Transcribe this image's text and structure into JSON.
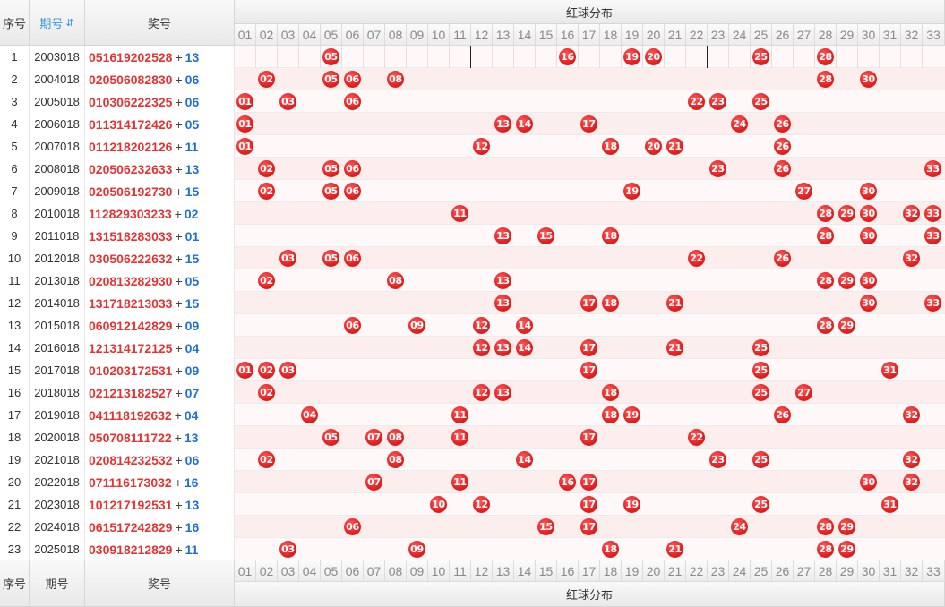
{
  "header": {
    "seq_label": "序号",
    "period_label": "期号",
    "prize_label": "奖号",
    "group_label": "红球分布",
    "numbers": [
      "01",
      "02",
      "03",
      "04",
      "05",
      "06",
      "07",
      "08",
      "09",
      "10",
      "11",
      "12",
      "13",
      "14",
      "15",
      "16",
      "17",
      "18",
      "19",
      "20",
      "21",
      "22",
      "23",
      "24",
      "25",
      "26",
      "27",
      "28",
      "29",
      "30",
      "31",
      "32",
      "33"
    ]
  },
  "rows": [
    {
      "seq": "1",
      "period": "2003018",
      "reds": [
        "05",
        "16",
        "19",
        "20",
        "25",
        "28"
      ],
      "blue": "13"
    },
    {
      "seq": "2",
      "period": "2004018",
      "reds": [
        "02",
        "05",
        "06",
        "08",
        "28",
        "30"
      ],
      "blue": "06"
    },
    {
      "seq": "3",
      "period": "2005018",
      "reds": [
        "01",
        "03",
        "06",
        "22",
        "23",
        "25"
      ],
      "blue": "06"
    },
    {
      "seq": "4",
      "period": "2006018",
      "reds": [
        "01",
        "13",
        "14",
        "17",
        "24",
        "26"
      ],
      "blue": "05"
    },
    {
      "seq": "5",
      "period": "2007018",
      "reds": [
        "01",
        "12",
        "18",
        "20",
        "21",
        "26"
      ],
      "blue": "11"
    },
    {
      "seq": "6",
      "period": "2008018",
      "reds": [
        "02",
        "05",
        "06",
        "23",
        "26",
        "33"
      ],
      "blue": "13"
    },
    {
      "seq": "7",
      "period": "2009018",
      "reds": [
        "02",
        "05",
        "06",
        "19",
        "27",
        "30"
      ],
      "blue": "15"
    },
    {
      "seq": "8",
      "period": "2010018",
      "reds": [
        "11",
        "28",
        "29",
        "30",
        "32",
        "33"
      ],
      "blue": "02"
    },
    {
      "seq": "9",
      "period": "2011018",
      "reds": [
        "13",
        "15",
        "18",
        "28",
        "30",
        "33"
      ],
      "blue": "01"
    },
    {
      "seq": "10",
      "period": "2012018",
      "reds": [
        "03",
        "05",
        "06",
        "22",
        "26",
        "32"
      ],
      "blue": "15"
    },
    {
      "seq": "11",
      "period": "2013018",
      "reds": [
        "02",
        "08",
        "13",
        "28",
        "29",
        "30"
      ],
      "blue": "05"
    },
    {
      "seq": "12",
      "period": "2014018",
      "reds": [
        "13",
        "17",
        "18",
        "21",
        "30",
        "33"
      ],
      "blue": "15"
    },
    {
      "seq": "13",
      "period": "2015018",
      "reds": [
        "06",
        "09",
        "12",
        "14",
        "28",
        "29"
      ],
      "blue": "09"
    },
    {
      "seq": "14",
      "period": "2016018",
      "reds": [
        "12",
        "13",
        "14",
        "17",
        "21",
        "25"
      ],
      "blue": "04"
    },
    {
      "seq": "15",
      "period": "2017018",
      "reds": [
        "01",
        "02",
        "03",
        "17",
        "25",
        "31"
      ],
      "blue": "09"
    },
    {
      "seq": "16",
      "period": "2018018",
      "reds": [
        "02",
        "12",
        "13",
        "18",
        "25",
        "27"
      ],
      "blue": "07"
    },
    {
      "seq": "17",
      "period": "2019018",
      "reds": [
        "04",
        "11",
        "18",
        "19",
        "26",
        "32"
      ],
      "blue": "04"
    },
    {
      "seq": "18",
      "period": "2020018",
      "reds": [
        "05",
        "07",
        "08",
        "11",
        "17",
        "22"
      ],
      "blue": "13"
    },
    {
      "seq": "19",
      "period": "2021018",
      "reds": [
        "02",
        "08",
        "14",
        "23",
        "25",
        "32"
      ],
      "blue": "06"
    },
    {
      "seq": "20",
      "period": "2022018",
      "reds": [
        "07",
        "11",
        "16",
        "17",
        "30",
        "32"
      ],
      "blue": "16"
    },
    {
      "seq": "21",
      "period": "2023018",
      "reds": [
        "10",
        "12",
        "17",
        "19",
        "25",
        "31"
      ],
      "blue": "13"
    },
    {
      "seq": "22",
      "period": "2024018",
      "reds": [
        "06",
        "15",
        "17",
        "24",
        "28",
        "29"
      ],
      "blue": "16"
    },
    {
      "seq": "23",
      "period": "2025018",
      "reds": [
        "03",
        "09",
        "18",
        "21",
        "28",
        "29"
      ],
      "blue": "11"
    }
  ],
  "footer": {
    "seq_label": "序号",
    "period_label": "期号",
    "prize_label": "奖号",
    "group_label": "红球分布"
  },
  "colors": {
    "red_ball": "#e32020",
    "blue_number": "#1f6fd6",
    "red_number": "#e53333"
  }
}
